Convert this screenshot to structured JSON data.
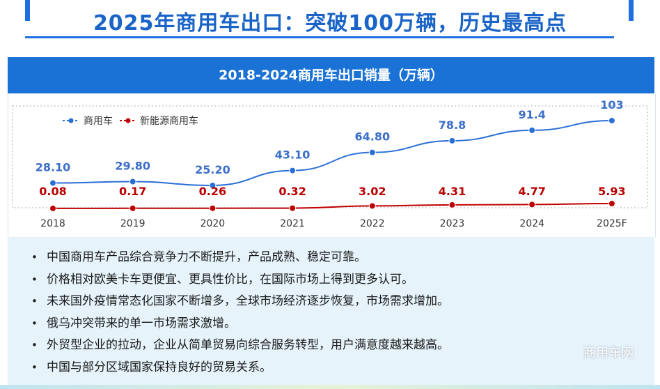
{
  "page_title": "2025年商用车出口：突破100万辆，历史最高点",
  "chart_header": "2018-2024商用车出口销量（万辆）",
  "chart_data": {
    "type": "line",
    "categories": [
      "2018",
      "2019",
      "2020",
      "2021",
      "2022",
      "2023",
      "2024",
      "2025F"
    ],
    "series": [
      {
        "name": "商用车",
        "color": "#2a6fd6",
        "values": [
          28.1,
          29.8,
          25.2,
          43.1,
          64.8,
          78.8,
          91.4,
          103
        ],
        "labels": [
          "28.10",
          "29.80",
          "25.20",
          "43.10",
          "64.80",
          "78.8",
          "91.4",
          "103"
        ]
      },
      {
        "name": "新能源商用车",
        "color": "#c00000",
        "values": [
          0.08,
          0.17,
          0.26,
          0.32,
          3.02,
          4.31,
          4.77,
          5.93
        ],
        "labels": [
          "0.08",
          "0.17",
          "0.26",
          "0.32",
          "3.02",
          "4.31",
          "4.77",
          "5.93"
        ]
      }
    ],
    "legend_position": "top-left",
    "grid": false
  },
  "bullets": [
    "中国商用车产品综合竞争力不断提升，产品成熟、稳定可靠。",
    "价格相对欧美卡车更便宜、更具性价比，在国际市场上得到更多认可。",
    "未来国外疫情常态化国家不断增多，全球市场经济逐步恢复，市场需求增加。",
    "俄乌冲突带来的单一市场需求激增。",
    "外贸型企业的拉动，企业从简单贸易向综合服务转型，用户满意度越来越高。",
    "中国与部分区域国家保持良好的贸易关系。"
  ],
  "watermark": "商用车网"
}
